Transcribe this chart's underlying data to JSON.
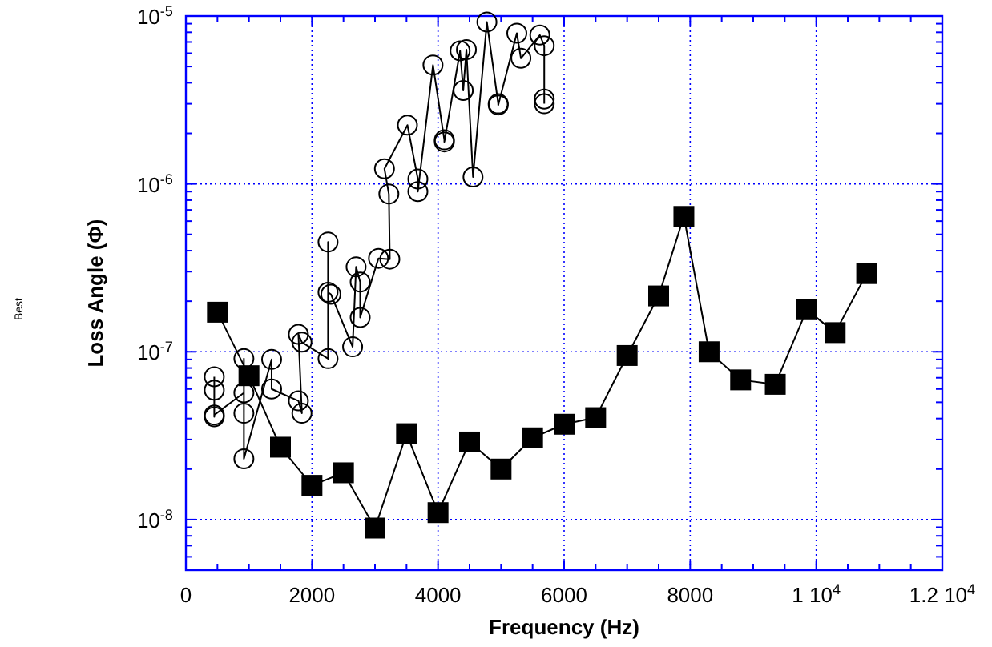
{
  "chart_data": {
    "type": "line",
    "xlabel": "Frequency (Hz)",
    "ylabel": "Loss Angle (Φ)",
    "annotations": [
      "Best"
    ],
    "log": "y",
    "grid": true,
    "line_style": "solid",
    "xlim": [
      0,
      12000
    ],
    "ylim": [
      5e-09,
      1e-05
    ],
    "xticks": [
      0,
      {
        "value": 500,
        "label": null
      },
      2000,
      {
        "value": 1000,
        "label": null
      },
      {
        "value": 1500,
        "label": null
      },
      {
        "value": 2500,
        "label": null
      },
      {
        "value": 3000,
        "label": null
      },
      {
        "value": 3500,
        "label": null
      },
      4000,
      {
        "value": 4500,
        "label": null
      },
      {
        "value": 5000,
        "label": null
      },
      {
        "value": 5500,
        "label": null
      },
      6000,
      {
        "value": 6500,
        "label": null
      },
      {
        "value": 7000,
        "label": null
      },
      {
        "value": 7500,
        "label": null
      },
      8000,
      {
        "value": 8500,
        "label": null
      },
      {
        "value": 9000,
        "label": null
      },
      {
        "value": 9500,
        "label": null
      },
      {
        "value": 10000,
        "label": "1 10$^{4}$"
      },
      {
        "value": 10500,
        "label": null
      },
      {
        "value": 11000,
        "label": null
      },
      {
        "value": 11500,
        "label": null
      },
      {
        "value": 12000,
        "label": "1.2 10$^{4}$"
      }
    ],
    "yticks": [
      {
        "value": 5e-09,
        "label": null
      },
      {
        "value": 6e-09,
        "label": null
      },
      {
        "value": 7e-09,
        "label": null
      },
      {
        "value": 8e-09,
        "label": null
      },
      {
        "value": 9e-09,
        "label": null
      },
      {
        "value": 1e-08,
        "label": "10$^{-8}$"
      },
      {
        "value": 2e-08,
        "label": null
      },
      {
        "value": 3e-08,
        "label": null
      },
      {
        "value": 4e-08,
        "label": null
      },
      {
        "value": 5e-08,
        "label": null
      },
      {
        "value": 6e-08,
        "label": null
      },
      {
        "value": 7e-08,
        "label": null
      },
      {
        "value": 8e-08,
        "label": null
      },
      {
        "value": 9e-08,
        "label": null
      },
      {
        "value": 1e-07,
        "label": "10$^{-7}$"
      },
      {
        "value": 2e-07,
        "label": null
      },
      {
        "value": 3e-07,
        "label": null
      },
      {
        "value": 4e-07,
        "label": null
      },
      {
        "value": 5e-07,
        "label": null
      },
      {
        "value": 6e-07,
        "label": null
      },
      {
        "value": 7e-07,
        "label": null
      },
      {
        "value": 8e-07,
        "label": null
      },
      {
        "value": 9e-07,
        "label": null
      },
      {
        "value": 1e-06,
        "label": "10$^{-6}$"
      },
      {
        "value": 2e-06,
        "label": null
      },
      {
        "value": 3e-06,
        "label": null
      },
      {
        "value": 4e-06,
        "label": null
      },
      {
        "value": 5e-06,
        "label": null
      },
      {
        "value": 6e-06,
        "label": null
      },
      {
        "value": 7e-06,
        "label": null
      },
      {
        "value": 8e-06,
        "label": null
      },
      {
        "value": 9e-06,
        "label": null
      },
      {
        "value": 1e-05,
        "label": "10$^{-5}$"
      }
    ],
    "series": [
      {
        "color": "#000000",
        "marker": "circle",
        "x": [
          450,
          450,
          450,
          450,
          920,
          920,
          920,
          920,
          1360,
          1360,
          1785,
          1840,
          1785,
          1840,
          2255,
          2255,
          2255,
          2300,
          2645,
          2700,
          2765,
          2765,
          3055,
          3235,
          3220,
          3150,
          3515,
          3680,
          3680,
          3920,
          4100,
          4100,
          4350,
          4400,
          4450,
          4555,
          4775,
          4955,
          4955,
          5250,
          5315,
          5615,
          5685,
          5685,
          5685
        ],
        "values": [
          7.1e-08,
          4.1e-08,
          5.9e-08,
          4.2e-08,
          5.7e-08,
          9.1e-08,
          4.3e-08,
          2.3e-08,
          9e-08,
          6e-08,
          5.1e-08,
          4.3e-08,
          1.27e-07,
          1.14e-07,
          9.1e-08,
          4.5e-07,
          2.26e-07,
          2.2e-07,
          1.07e-07,
          3.2e-07,
          2.6e-07,
          1.6e-07,
          3.6e-07,
          3.56e-07,
          8.7e-07,
          1.23e-06,
          2.24e-06,
          1.07e-06,
          9e-07,
          5.1e-06,
          1.83e-06,
          1.78e-06,
          6.2e-06,
          3.6e-06,
          6.3e-06,
          1.1e-06,
          9.2e-06,
          3e-06,
          2.95e-06,
          7.9e-06,
          5.6e-06,
          7.7e-06,
          6.65e-06,
          3.2e-06,
          3e-06
        ]
      },
      {
        "color": "#000000",
        "marker": "square",
        "x": [
          500,
          1000,
          1500,
          2000,
          2500,
          3000,
          3500,
          4000,
          4500,
          5000,
          5500,
          6000,
          6500,
          7000,
          7500,
          7900,
          8300,
          8800,
          9350,
          9850,
          10300,
          10800
        ],
        "values": [
          1.72e-07,
          7.2e-08,
          2.7e-08,
          1.6e-08,
          1.9e-08,
          8.9e-09,
          3.25e-08,
          1.1e-08,
          2.9e-08,
          2e-08,
          3.07e-08,
          3.7e-08,
          4.05e-08,
          9.5e-08,
          2.15e-07,
          6.4e-07,
          1e-07,
          6.8e-08,
          6.4e-08,
          1.78e-07,
          1.3e-07,
          2.92e-07
        ]
      }
    ]
  }
}
